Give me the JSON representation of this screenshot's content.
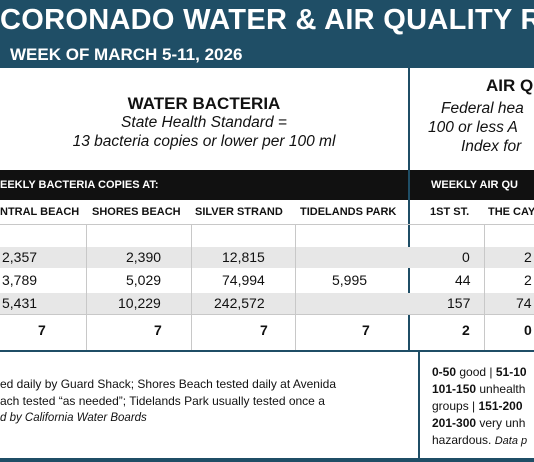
{
  "header": {
    "title": "CORONADO WATER & AIR QUALITY R",
    "subtitle": "WEEK OF MARCH 5-11, 2026"
  },
  "water": {
    "heading": "WATER BACTERIA",
    "standard_line1": "State Health Standard  =",
    "standard_line2": "13 bacteria copies or lower per 100 ml",
    "band_label": "EEKLY BACTERIA COPIES AT:",
    "columns": [
      "NTRAL BEACH",
      "SHORES BEACH",
      "SILVER STRAND",
      "TIDELANDS PARK"
    ],
    "rows": [
      [
        "2,357",
        "2,390",
        "12,815",
        ""
      ],
      [
        "3,789",
        "5,029",
        "74,994",
        "5,995"
      ],
      [
        "5,431",
        "10,229",
        "242,572",
        ""
      ],
      [
        "7",
        "7",
        "7",
        "7"
      ]
    ],
    "note_line1": "ed daily by Guard Shack; Shores Beach tested daily at Avenida",
    "note_line2": "ach tested “as needed”; Tidelands Park usually tested once a",
    "note_source": "d by California Water Boards"
  },
  "air": {
    "heading": "AIR Q",
    "standard_line1": "Federal hea",
    "standard_line2": "100 or less A",
    "standard_line3": "Index for",
    "band_label": "WEEKLY AIR QU",
    "columns": [
      "1ST ST.",
      "THE CAY"
    ],
    "rows": [
      [
        "0",
        "2"
      ],
      [
        "44",
        "2"
      ],
      [
        "157",
        "74"
      ],
      [
        "2",
        "0"
      ]
    ],
    "legend": {
      "r1_a": "0-50",
      "r1_b": " good | ",
      "r1_c": "51-10",
      "r2_a": "101-150",
      "r2_b": " unhealth",
      "r3_a": "groups | ",
      "r3_b": "151-200",
      "r4_a": "201-300",
      "r4_b": " very unh",
      "r5_a": "hazardous. ",
      "r5_src": "Data p"
    }
  },
  "colors": {
    "header_bg": "#1f4e66",
    "band_bg": "#111111",
    "row_shade": "#e7e7e7"
  }
}
